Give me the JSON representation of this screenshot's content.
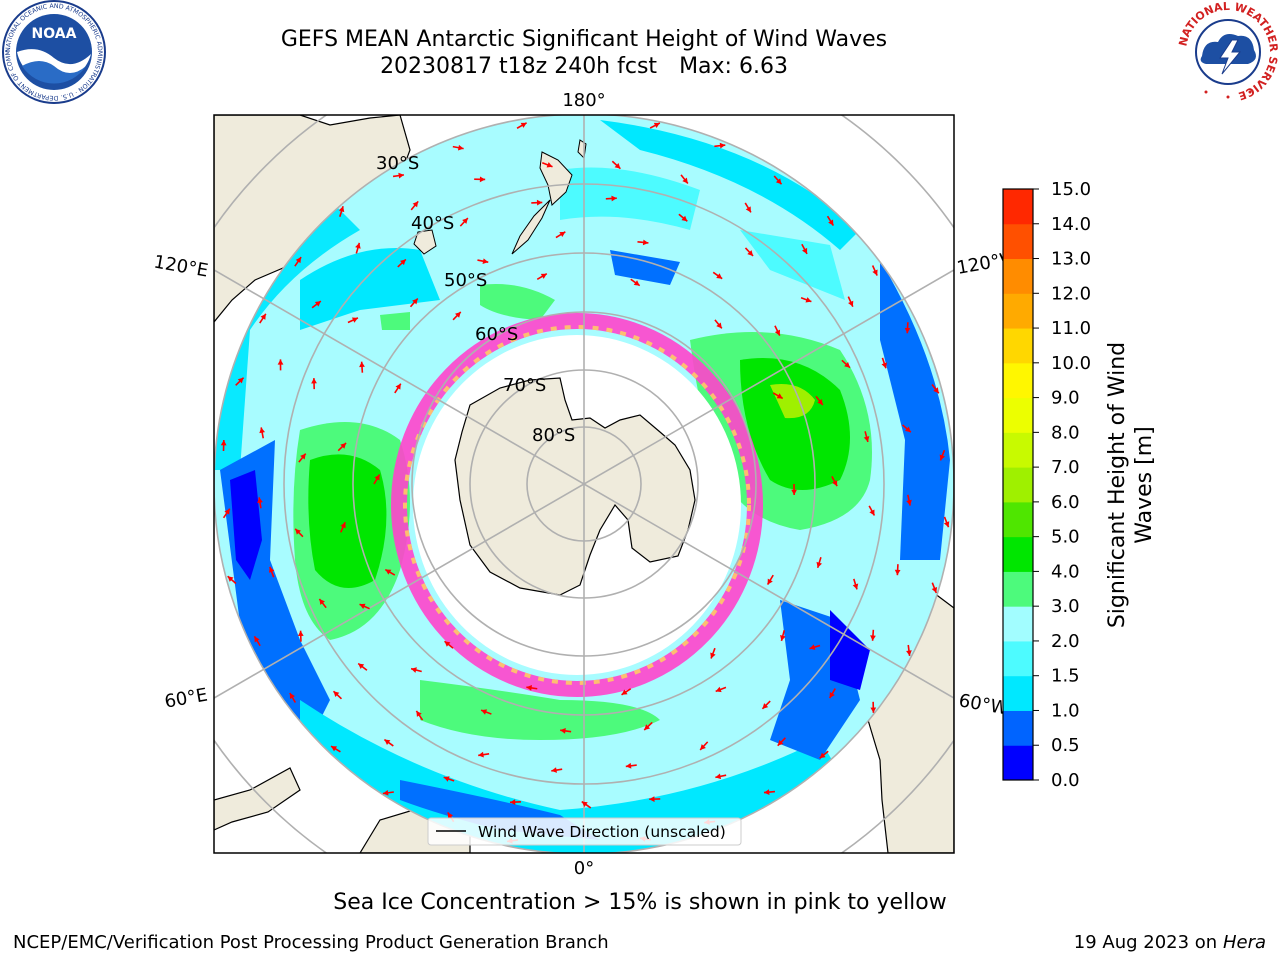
{
  "header": {
    "title_line1": "GEFS MEAN Antarctic Significant Height of Wind Waves",
    "title_run": "20230817 t18z 240h fcst",
    "title_max": "Max: 6.63"
  },
  "map": {
    "projection": "south-polar-stereographic",
    "longitude_labels": {
      "top": "180°",
      "bottom": "0°",
      "left_upper": "120°E",
      "left_lower": "60°E",
      "right_upper": "120°W",
      "right_lower": "60°W"
    },
    "latitude_labels": [
      "30°S",
      "40°S",
      "50°S",
      "60°S",
      "70°S",
      "80°S"
    ],
    "legend": "Wind Wave Direction (unscaled)",
    "land_color": "#efebdc",
    "ocean_note": "Significant wave height filled contours; red arrows show wind wave direction"
  },
  "colorbar": {
    "label_line1": "Significant Height of Wind",
    "label_line2": "Waves [m]",
    "ticks": [
      "0.0",
      "0.5",
      "1.0",
      "1.5",
      "2.0",
      "3.0",
      "4.0",
      "5.0",
      "6.0",
      "7.0",
      "8.0",
      "9.0",
      "10.0",
      "11.0",
      "12.0",
      "13.0",
      "14.0",
      "15.0"
    ],
    "colors": [
      "#0000ff",
      "#0064ff",
      "#00e8ff",
      "#4dfbff",
      "#a2fdff",
      "#4dfa7c",
      "#00e600",
      "#4fe600",
      "#9ff000",
      "#c8fa00",
      "#ecff00",
      "#fff700",
      "#ffd700",
      "#ffaa00",
      "#ff8c00",
      "#ff5000",
      "#ff2800",
      "#ff0000"
    ]
  },
  "caption": "Sea Ice Concentration > 15% is shown in pink to yellow",
  "footer": {
    "left": "NCEP/EMC/Verification Post Processing Product Generation Branch",
    "right_prefix": "19 Aug 2023 on",
    "right_host": "Hera"
  },
  "logos": {
    "noaa": "NOAA",
    "noaa_ring": "NATIONAL OCEANIC AND ATMOSPHERIC ADMINISTRATION · U.S. DEPARTMENT OF COMMERCE",
    "nws_ring": "NATIONAL WEATHER SERVICE"
  }
}
